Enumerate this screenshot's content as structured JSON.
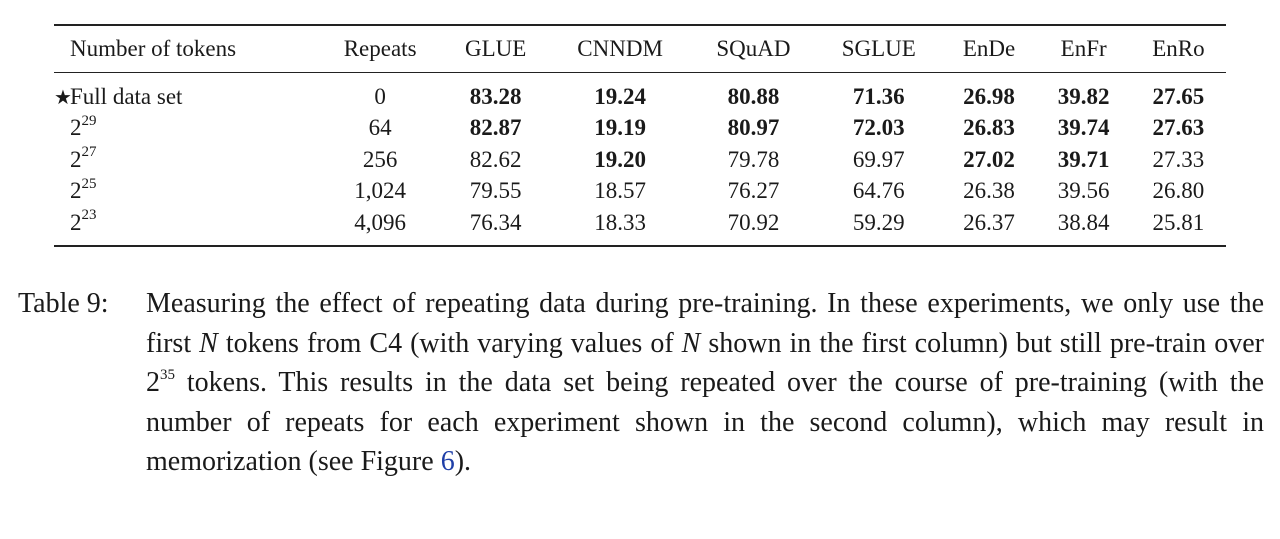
{
  "table": {
    "columns": [
      "Number of tokens",
      "Repeats",
      "GLUE",
      "CNNDM",
      "SQuAD",
      "SGLUE",
      "EnDe",
      "EnFr",
      "EnRo"
    ],
    "rows": [
      {
        "baseline_marker": "★",
        "label": "Full data set",
        "label_base": "",
        "label_exp": "",
        "repeats": "0",
        "values": [
          "83.28",
          "19.24",
          "80.88",
          "71.36",
          "26.98",
          "39.82",
          "27.65"
        ],
        "bold": [
          true,
          true,
          true,
          true,
          true,
          true,
          true
        ]
      },
      {
        "baseline_marker": "",
        "label": "",
        "label_base": "2",
        "label_exp": "29",
        "repeats": "64",
        "values": [
          "82.87",
          "19.19",
          "80.97",
          "72.03",
          "26.83",
          "39.74",
          "27.63"
        ],
        "bold": [
          true,
          true,
          true,
          true,
          true,
          true,
          true
        ]
      },
      {
        "baseline_marker": "",
        "label": "",
        "label_base": "2",
        "label_exp": "27",
        "repeats": "256",
        "values": [
          "82.62",
          "19.20",
          "79.78",
          "69.97",
          "27.02",
          "39.71",
          "27.33"
        ],
        "bold": [
          false,
          true,
          false,
          false,
          true,
          true,
          false
        ]
      },
      {
        "baseline_marker": "",
        "label": "",
        "label_base": "2",
        "label_exp": "25",
        "repeats": "1,024",
        "values": [
          "79.55",
          "18.57",
          "76.27",
          "64.76",
          "26.38",
          "39.56",
          "26.80"
        ],
        "bold": [
          false,
          false,
          false,
          false,
          false,
          false,
          false
        ]
      },
      {
        "baseline_marker": "",
        "label": "",
        "label_base": "2",
        "label_exp": "23",
        "repeats": "4,096",
        "values": [
          "76.34",
          "18.33",
          "70.92",
          "59.29",
          "26.37",
          "38.84",
          "25.81"
        ],
        "bold": [
          false,
          false,
          false,
          false,
          false,
          false,
          false
        ]
      }
    ]
  },
  "caption": {
    "label": "Table 9:",
    "part1": "Measuring the effect of repeating data during pre-training. In these experiments, we only use the first ",
    "var1": "N",
    "part2": " tokens from C4 (with varying values of ",
    "var2": "N",
    "part3": " shown in the first column) but still pre-train over ",
    "pow_base": "2",
    "pow_exp": "35",
    "part4": " tokens. This results in the data set being repeated over the course of pre-training (with the number of repeats for each experiment shown in the second column), which may result in memorization (see Figure ",
    "figure_ref": "6",
    "part5": ")."
  },
  "colors": {
    "link": "#1f3fa8",
    "text": "#1a1a1a"
  }
}
